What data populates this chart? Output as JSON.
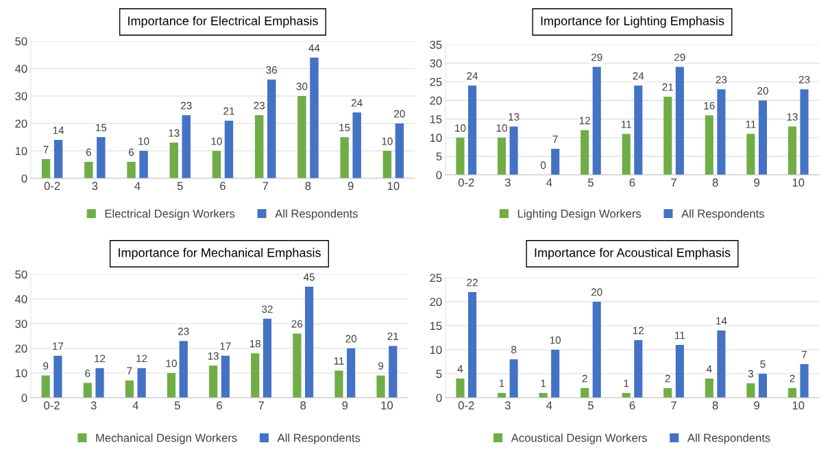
{
  "chart_data": [
    {
      "type": "bar",
      "title": "Importance for Electrical Emphasis",
      "categories": [
        "0-2",
        "3",
        "4",
        "5",
        "6",
        "7",
        "8",
        "9",
        "10"
      ],
      "series": [
        {
          "name": "Electrical Design Workers",
          "color": "#70ad47",
          "values": [
            7,
            6,
            6,
            13,
            10,
            23,
            30,
            15,
            10
          ]
        },
        {
          "name": "All Respondents",
          "color": "#4472c4",
          "values": [
            14,
            15,
            10,
            23,
            21,
            36,
            44,
            24,
            20
          ]
        }
      ],
      "ylim": [
        0,
        50
      ],
      "yticks": [
        0,
        10,
        20,
        30,
        40,
        50
      ],
      "grid": "y",
      "legend": "bottom",
      "data_labels": true
    },
    {
      "type": "bar",
      "title": "Importance for Lighting Emphasis",
      "categories": [
        "0-2",
        "3",
        "4",
        "5",
        "6",
        "7",
        "8",
        "9",
        "10"
      ],
      "series": [
        {
          "name": "Lighting Design Workers",
          "color": "#70ad47",
          "values": [
            10,
            10,
            0,
            12,
            11,
            21,
            16,
            11,
            13
          ]
        },
        {
          "name": "All Respondents",
          "color": "#4472c4",
          "values": [
            24,
            13,
            7,
            29,
            24,
            29,
            23,
            20,
            23
          ]
        }
      ],
      "ylim": [
        0,
        35
      ],
      "yticks": [
        0,
        5,
        10,
        15,
        20,
        25,
        30,
        35
      ],
      "grid": "y",
      "legend": "bottom",
      "data_labels": true
    },
    {
      "type": "bar",
      "title": "Importance for Mechanical Emphasis",
      "categories": [
        "0-2",
        "3",
        "4",
        "5",
        "6",
        "7",
        "8",
        "9",
        "10"
      ],
      "series": [
        {
          "name": "Mechanical Design Workers",
          "color": "#70ad47",
          "values": [
            9,
            6,
            7,
            10,
            13,
            18,
            26,
            11,
            9
          ]
        },
        {
          "name": "All Respondents",
          "color": "#4472c4",
          "values": [
            17,
            12,
            12,
            23,
            17,
            32,
            45,
            20,
            21
          ]
        }
      ],
      "ylim": [
        0,
        50
      ],
      "yticks": [
        0,
        10,
        20,
        30,
        40,
        50
      ],
      "grid": "y",
      "legend": "bottom",
      "data_labels": true
    },
    {
      "type": "bar",
      "title": "Importance for Acoustical Emphasis",
      "categories": [
        "0-2",
        "3",
        "4",
        "5",
        "6",
        "7",
        "8",
        "9",
        "10"
      ],
      "series": [
        {
          "name": "Acoustical Design Workers",
          "color": "#70ad47",
          "values": [
            4,
            1,
            1,
            2,
            1,
            2,
            4,
            3,
            2
          ]
        },
        {
          "name": "All Respondents",
          "color": "#4472c4",
          "values": [
            22,
            8,
            10,
            20,
            12,
            11,
            14,
            5,
            7
          ]
        }
      ],
      "ylim": [
        0,
        25
      ],
      "yticks": [
        0,
        5,
        10,
        15,
        20,
        25
      ],
      "grid": "y",
      "legend": "bottom",
      "data_labels": true
    }
  ]
}
